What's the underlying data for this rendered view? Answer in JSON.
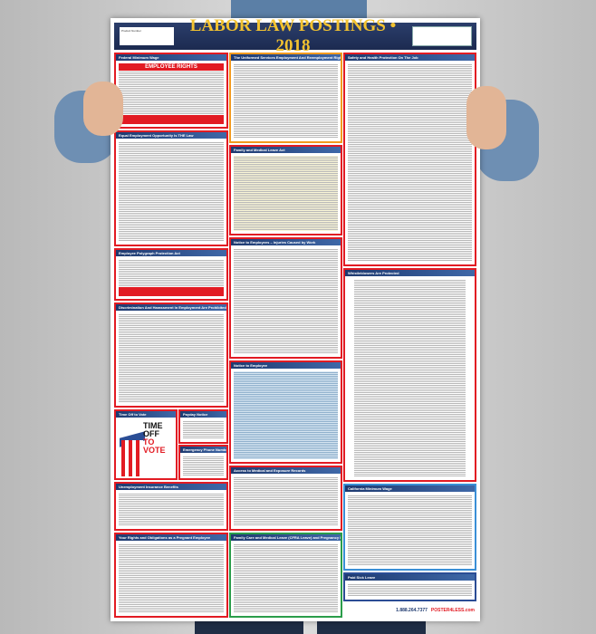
{
  "poster": {
    "title": "LABOR LAW POSTINGS • 2018",
    "qr_caption": "Product Number",
    "sections": {
      "federal_min_wage": "Federal Minimum Wage",
      "employee_rights": "EMPLOYEE RIGHTS",
      "eeo": "Equal Employment Opportunity Is THE Law",
      "polygraph": "Employee Polygraph Protection Act",
      "discrimination": "Discrimination And Harassment In Employment Are Prohibited By Law",
      "time_off_vote": "Time Off to Vote",
      "time_off_big1": "TIME OFF",
      "time_off_big2": "TO VOTE",
      "payday": "Payday Notice",
      "emergency": "Emergency Phone Numbers",
      "unemployment": "Unemployment Insurance Benefits",
      "pregnant": "Your Rights and Obligations as a Pregnant Employee",
      "userra": "The Uniformed Services Employment And Reemployment Rights Act",
      "fmla": "Family and Medical Leave Act",
      "injuries": "Notice to Employees – Injuries Caused by Work",
      "notice_employee": "Notice to Employee",
      "access_records": "Access to Medical and Exposure Records",
      "cfra": "Family Care and Medical Leave (CFRA Leave) and Pregnancy Disability Leave",
      "safety": "Safety and Health Protection On The Job",
      "whistleblower": "Whistleblowers Are Protected",
      "ca_min_wage": "California Minimum Wage",
      "sick_leave": "Paid Sick Leave"
    },
    "footer": {
      "phone": "1.888.264.7377",
      "brand": "POSTER4LESS.com"
    }
  },
  "colors": {
    "header": "#1c2a50",
    "title": "#f2c230",
    "panel_border": "#e21b23",
    "panel_head": "#1e3a70"
  }
}
